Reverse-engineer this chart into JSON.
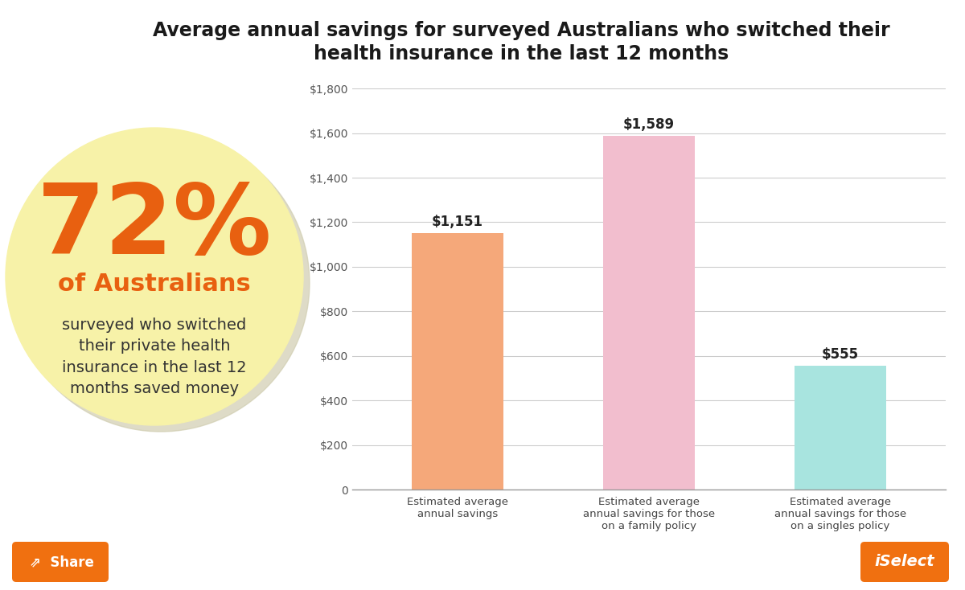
{
  "title_line1": "Average annual savings for surveyed Australians who switched their",
  "title_line2": "health insurance in the last 12 months",
  "categories": [
    "Estimated average\nannual savings",
    "Estimated average\nannual savings for those\non a family policy",
    "Estimated average\nannual savings for those\non a singles policy"
  ],
  "values": [
    1151,
    1589,
    555
  ],
  "bar_colors": [
    "#F5A87A",
    "#F2BECE",
    "#A8E4DF"
  ],
  "bar_labels": [
    "$1,151",
    "$1,589",
    "$555"
  ],
  "ylim": [
    0,
    1800
  ],
  "yticks": [
    0,
    200,
    400,
    600,
    800,
    1000,
    1200,
    1400,
    1600,
    1800
  ],
  "ytick_labels": [
    "0",
    "$200",
    "$400",
    "$600",
    "$800",
    "$1,000",
    "$1,200",
    "$1,400",
    "$1,600",
    "$1,800"
  ],
  "background_color": "#ffffff",
  "circle_color": "#F7F2A8",
  "circle_shadow_color": "#D0CDB0",
  "pct_text": "72%",
  "pct_color": "#E86010",
  "subtitle_orange": "of Australians",
  "subtitle_text": "surveyed who switched\ntheir private health\ninsurance in the last 12\nmonths saved money",
  "subtitle_color": "#333333",
  "orange_color": "#F07010",
  "title_fontsize": 17,
  "bar_label_fontsize": 12,
  "tick_fontsize": 10
}
